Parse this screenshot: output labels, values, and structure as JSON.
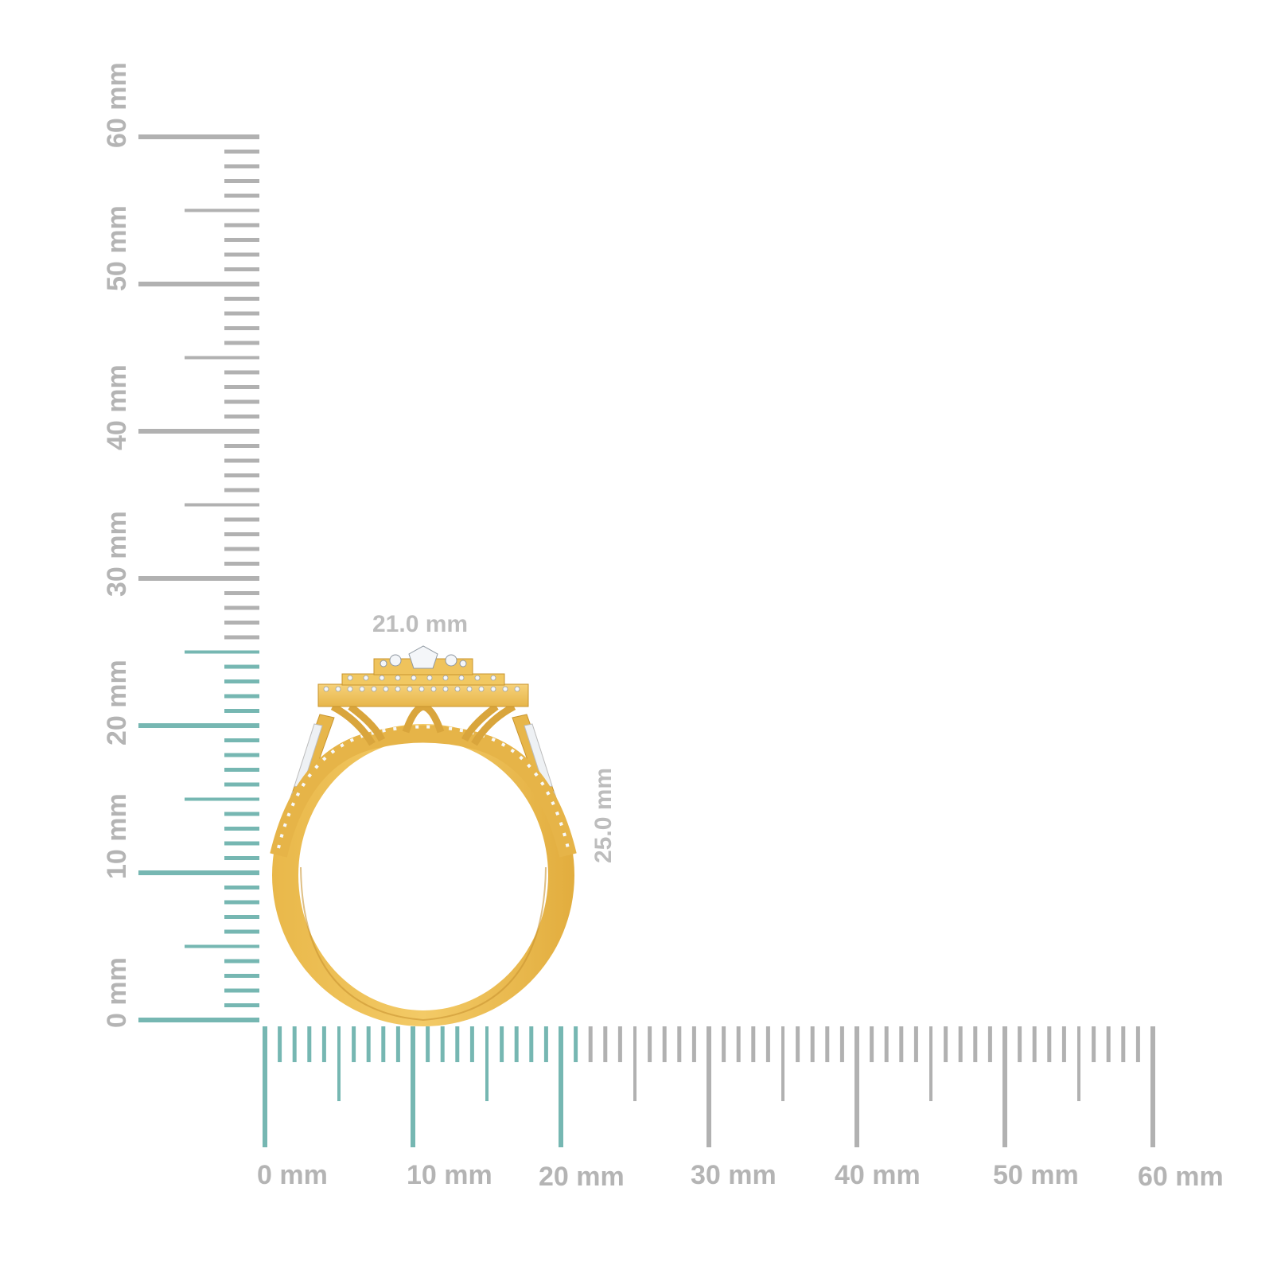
{
  "colors": {
    "ruler_active": "#76b7b2",
    "ruler_inactive": "#b1b1b1",
    "label": "#b4b4b4",
    "gold": "#e8b94c",
    "gold_light": "#f4cf73",
    "gold_dark": "#c4902a",
    "diamond": "#f1f4f7"
  },
  "vertical_ruler": {
    "unit": "mm",
    "range": [
      0,
      60
    ],
    "highlight_until_mm": 25,
    "labels": [
      "0 mm",
      "10 mm",
      "20 mm",
      "30 mm",
      "40 mm",
      "50 mm",
      "60 mm"
    ]
  },
  "horizontal_ruler": {
    "unit": "mm",
    "range": [
      0,
      60
    ],
    "highlight_until_mm": 21,
    "labels": [
      "0 mm",
      "10 mm",
      "20 mm",
      "30 mm",
      "40 mm",
      "50 mm",
      "60 mm"
    ]
  },
  "product": {
    "name": "gold double-halo engagement ring with baguette side stones",
    "width_label": "21.0 mm",
    "height_label": "25.0 mm",
    "width_mm": 21.0,
    "height_mm": 25.0
  }
}
